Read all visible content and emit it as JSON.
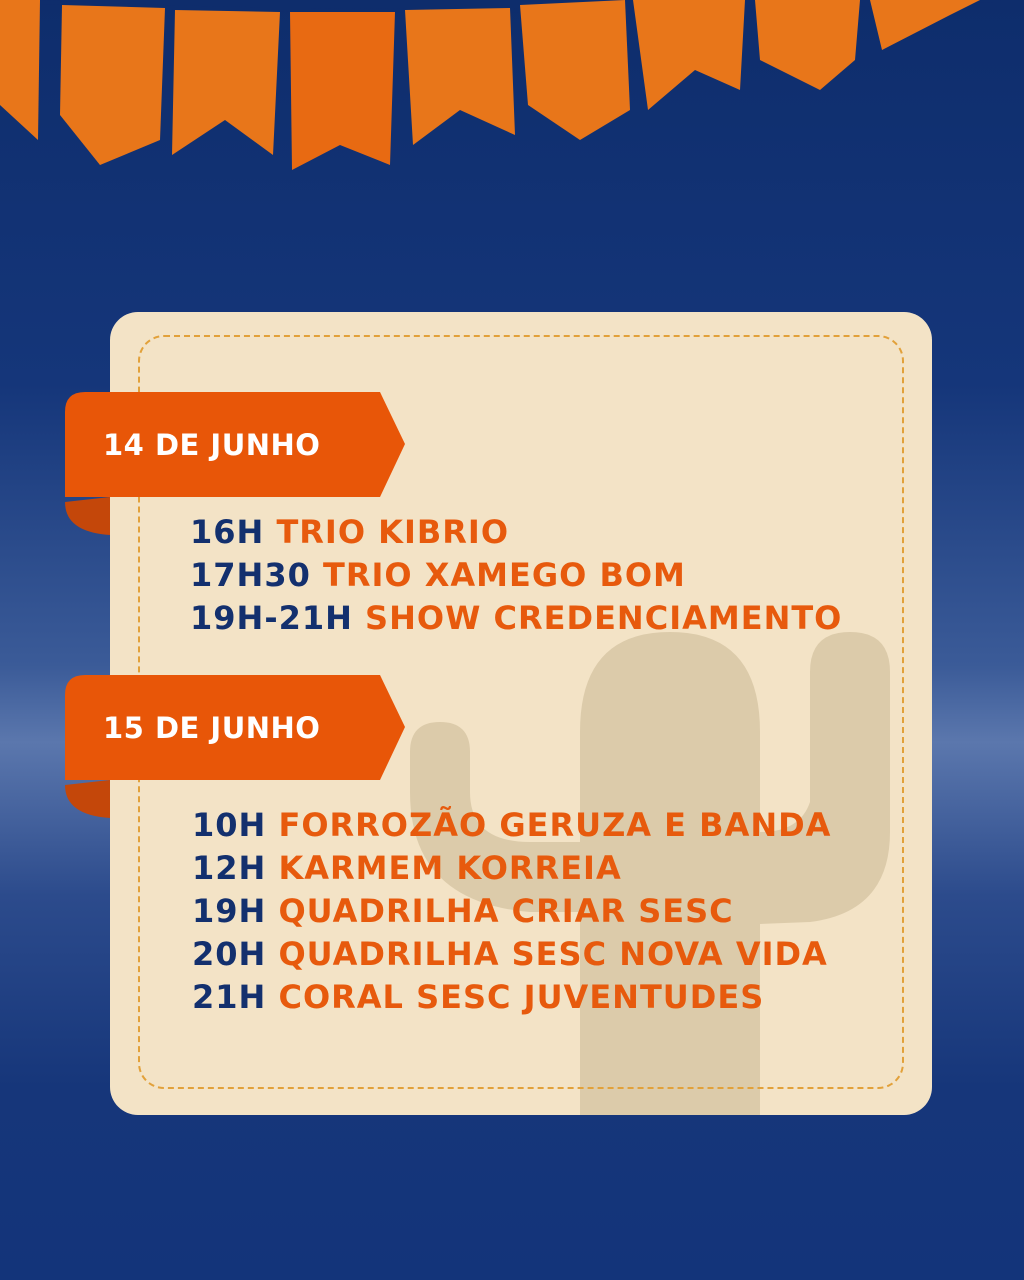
{
  "colors": {
    "background": "#15367a",
    "card": "#f3e3c6",
    "accent": "#e75a0d",
    "time": "#13306e",
    "ribbon": "#e85608"
  },
  "days": [
    {
      "label": "14 DE JUNHO",
      "events": [
        {
          "time": "16H",
          "act": "TRIO KIBRIO"
        },
        {
          "time": "17H30",
          "act": "TRIO XAMEGO BOM"
        },
        {
          "time": "19H-21H",
          "act": "SHOW CREDENCIAMENTO"
        }
      ]
    },
    {
      "label": "15 DE JUNHO",
      "events": [
        {
          "time": "10H",
          "act": "FORROZÃO GERUZA E BANDA"
        },
        {
          "time": "12H",
          "act": "KARMEM KORREIA"
        },
        {
          "time": "19H",
          "act": "QUADRILHA CRIAR SESC"
        },
        {
          "time": "20H",
          "act": "QUADRILHA SESC NOVA VIDA"
        },
        {
          "time": "21H",
          "act": "CORAL SESC JUVENTUDES"
        }
      ]
    }
  ]
}
